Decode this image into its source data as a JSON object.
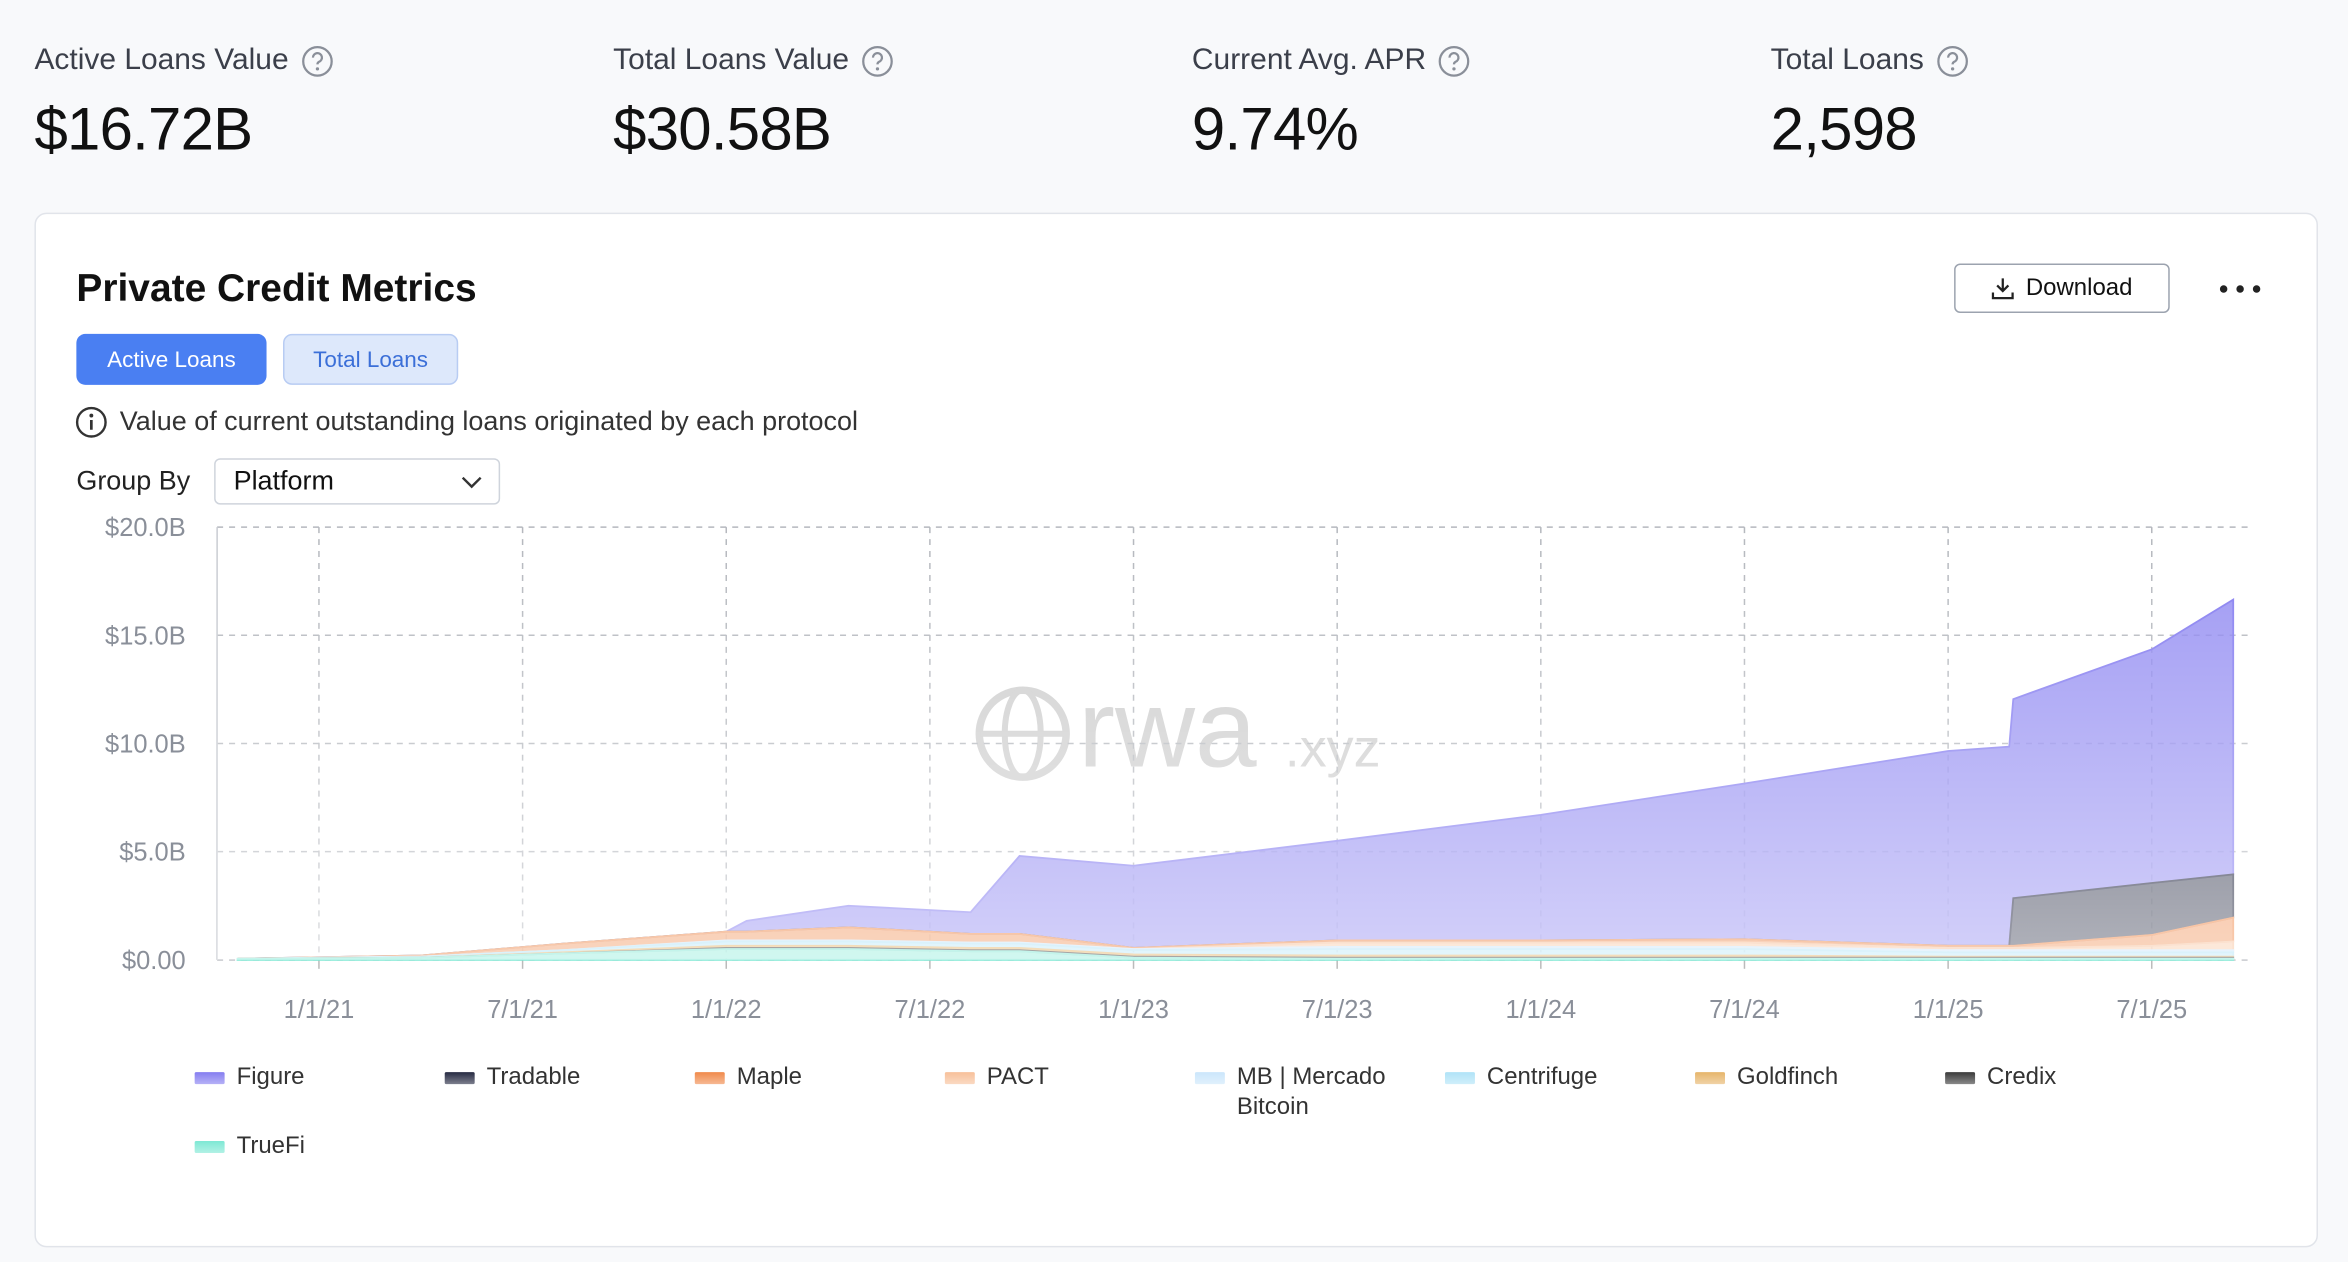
{
  "stats": [
    {
      "label": "Active Loans Value",
      "value": "$16.72B"
    },
    {
      "label": "Total Loans Value",
      "value": "$30.58B"
    },
    {
      "label": "Current Avg. APR",
      "value": "9.74%"
    },
    {
      "label": "Total Loans",
      "value": "2,598"
    }
  ],
  "panel": {
    "title": "Private Credit Metrics",
    "download": "Download",
    "tabs": [
      "Active Loans",
      "Total Loans"
    ],
    "description": "Value of current outstanding loans originated by each protocol",
    "group_by_label": "Group By",
    "group_by_value": "Platform",
    "watermark": "rwa",
    "watermark_suffix": ".xyz"
  },
  "chart_data": {
    "type": "stacked-area",
    "x": [
      2020.8,
      2021.25,
      2021.6,
      2022.0,
      2022.05,
      2022.3,
      2022.6,
      2022.72,
      2023.0,
      2023.5,
      2024.0,
      2024.5,
      2025.0,
      2025.15,
      2025.16,
      2025.5,
      2025.7
    ],
    "xlim": [
      2020.75,
      2025.75
    ],
    "xticks": [
      {
        "value": 2021,
        "label": "1/1/21"
      },
      {
        "value": 2021.5,
        "label": "7/1/21"
      },
      {
        "value": 2022,
        "label": "1/1/22"
      },
      {
        "value": 2022.5,
        "label": "7/1/22"
      },
      {
        "value": 2023,
        "label": "1/1/23"
      },
      {
        "value": 2023.5,
        "label": "7/1/23"
      },
      {
        "value": 2024,
        "label": "1/1/24"
      },
      {
        "value": 2024.5,
        "label": "7/1/24"
      },
      {
        "value": 2025,
        "label": "1/1/25"
      },
      {
        "value": 2025.5,
        "label": "7/1/25"
      }
    ],
    "ylim": [
      0,
      20
    ],
    "yticks": [
      {
        "value": 0,
        "label": "$0.00"
      },
      {
        "value": 5,
        "label": "$5.0B"
      },
      {
        "value": 10,
        "label": "$10.0B"
      },
      {
        "value": 15,
        "label": "$15.0B"
      },
      {
        "value": 20,
        "label": "$20.0B"
      }
    ],
    "grid": true,
    "series": [
      {
        "name": "Figure",
        "color": "#857df0",
        "values": [
          0,
          0,
          0,
          0,
          0.5,
          1.0,
          1.0,
          3.6,
          3.8,
          4.6,
          5.8,
          7.2,
          9.0,
          9.2,
          9.2,
          10.8,
          12.7
        ]
      },
      {
        "name": "Tradable",
        "color": "#262a42",
        "values": [
          0,
          0,
          0,
          0,
          0,
          0,
          0,
          0,
          0,
          0,
          0,
          0,
          0,
          0,
          2.2,
          2.4,
          2.0
        ]
      },
      {
        "name": "Maple",
        "color": "#f08a4b",
        "values": [
          0,
          0.05,
          0.3,
          0.4,
          0.4,
          0.6,
          0.4,
          0.4,
          0.05,
          0.1,
          0.1,
          0.15,
          0.1,
          0.1,
          0.1,
          0.5,
          1.1
        ]
      },
      {
        "name": "PACT",
        "color": "#f7c09a",
        "values": [
          0,
          0,
          0,
          0,
          0,
          0,
          0,
          0,
          0,
          0.2,
          0.2,
          0.2,
          0.1,
          0.1,
          0.1,
          0.2,
          0.4
        ]
      },
      {
        "name": "MB | Mercado Bitcoin",
        "color": "#cbe6fb",
        "values": [
          0,
          0,
          0,
          0.05,
          0.05,
          0.05,
          0.05,
          0.05,
          0.05,
          0.1,
          0.1,
          0.1,
          0.1,
          0.1,
          0.1,
          0.1,
          0.1
        ]
      },
      {
        "name": "Centrifuge",
        "color": "#b0e3f7",
        "values": [
          0,
          0.05,
          0.1,
          0.2,
          0.2,
          0.2,
          0.2,
          0.2,
          0.2,
          0.3,
          0.3,
          0.3,
          0.2,
          0.2,
          0.2,
          0.2,
          0.2
        ]
      },
      {
        "name": "Goldfinch",
        "color": "#e6b56a",
        "values": [
          0,
          0,
          0.05,
          0.1,
          0.1,
          0.1,
          0.1,
          0.1,
          0.1,
          0.1,
          0.1,
          0.1,
          0.05,
          0.05,
          0.05,
          0.05,
          0.05
        ]
      },
      {
        "name": "Credix",
        "color": "#3b3b3b",
        "values": [
          0,
          0,
          0,
          0.05,
          0.05,
          0.05,
          0.05,
          0.05,
          0.05,
          0.05,
          0.05,
          0.05,
          0.05,
          0.05,
          0.05,
          0.05,
          0.05
        ]
      },
      {
        "name": "TrueFi",
        "color": "#7ee8d4",
        "values": [
          0.05,
          0.1,
          0.3,
          0.5,
          0.5,
          0.5,
          0.4,
          0.4,
          0.1,
          0.05,
          0.05,
          0.05,
          0.05,
          0.05,
          0.05,
          0.05,
          0.05
        ]
      }
    ]
  }
}
